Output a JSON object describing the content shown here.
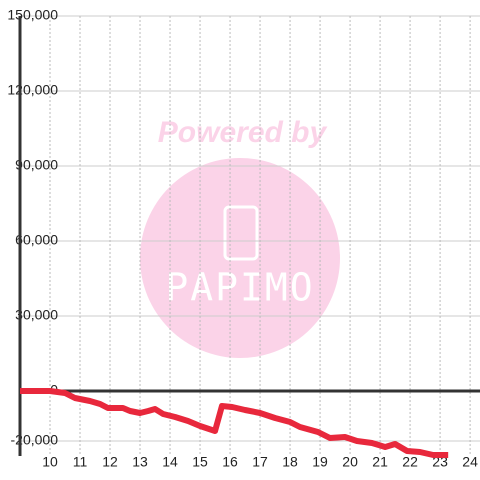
{
  "chart_data": {
    "type": "line",
    "watermark": {
      "line1": "Powered by",
      "line2": "PAPIMO"
    },
    "x": [
      9,
      10,
      10.5,
      10.83,
      11.33,
      11.67,
      11.93,
      12.17,
      12.43,
      12.67,
      13,
      13.27,
      13.5,
      13.77,
      14.17,
      14.6,
      15,
      15.5,
      15.73,
      16.07,
      16.5,
      17,
      17.5,
      18,
      18.33,
      18.93,
      19.33,
      19.83,
      20.23,
      20.73,
      21.17,
      21.5,
      21.9,
      22.33,
      22.77,
      23.27
    ],
    "series": [
      {
        "color": "#e8283c",
        "values": [
          0,
          0,
          -800,
          -2800,
          -4000,
          -5200,
          -6800,
          -6800,
          -6800,
          -8000,
          -8800,
          -8000,
          -7200,
          -9200,
          -10400,
          -12000,
          -14000,
          -16000,
          -6000,
          -6400,
          -7600,
          -8800,
          -10800,
          -12400,
          -14400,
          -16400,
          -18800,
          -18400,
          -20000,
          -20800,
          -22400,
          -21200,
          -24000,
          -24400,
          -25600,
          -25600
        ]
      }
    ],
    "xlim": [
      9,
      24.33
    ],
    "xticks": [
      10,
      11,
      12,
      13,
      14,
      15,
      16,
      17,
      18,
      19,
      20,
      21,
      22,
      23,
      24
    ],
    "ylim": [
      -26000,
      150000
    ],
    "yticks": [
      {
        "value": 150000,
        "label": "150,000"
      },
      {
        "value": 120000,
        "label": "120,000"
      },
      {
        "value": 90000,
        "label": "90,000"
      },
      {
        "value": 60000,
        "label": "60,000"
      },
      {
        "value": 30000,
        "label": "30,000"
      },
      0,
      {
        "value": -20000,
        "label": "-20,000"
      }
    ],
    "grid": true
  }
}
